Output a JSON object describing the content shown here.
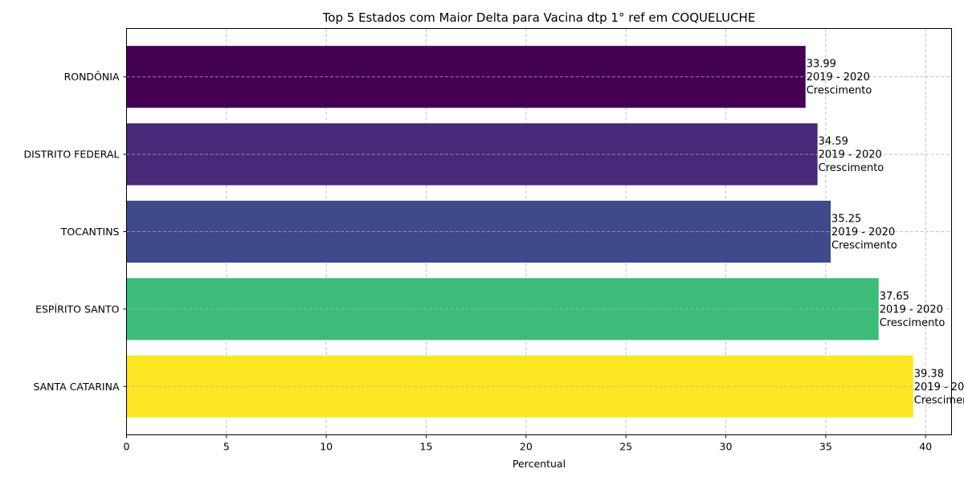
{
  "chart_data": {
    "type": "bar",
    "orientation": "horizontal",
    "title": "Top 5 Estados com Maior Delta para Vacina dtp 1° ref em COQUELUCHE",
    "xlabel": "Percentual",
    "ylabel": "",
    "xlim": [
      0,
      41.3
    ],
    "xticks": [
      "0",
      "5",
      "10",
      "15",
      "20",
      "25",
      "30",
      "35",
      "40"
    ],
    "grid": true,
    "categories": [
      "RONDÔNIA",
      "DISTRITO FEDERAL",
      "TOCANTINS",
      "ESPÍRITO SANTO",
      "SANTA CATARINA"
    ],
    "values": [
      33.99,
      34.59,
      35.25,
      37.65,
      39.38
    ],
    "value_labels": [
      "33.99",
      "34.59",
      "35.25",
      "37.65",
      "39.38"
    ],
    "period_label": "2019 - 2020",
    "trend_label": "Crescimento",
    "colors": [
      "#440154",
      "#482878",
      "#3e4a89",
      "#3dbb78",
      "#fde725"
    ]
  }
}
